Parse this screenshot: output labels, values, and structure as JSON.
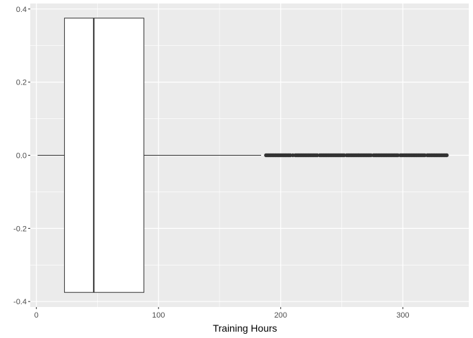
{
  "chart_data": {
    "type": "boxplot",
    "title": "",
    "xlabel": "Training Hours",
    "ylabel": "",
    "xlim": [
      -5,
      354
    ],
    "ylim": [
      -0.415,
      0.415
    ],
    "x_ticks": [
      0,
      100,
      200,
      300
    ],
    "x_tick_labels": [
      "0",
      "100",
      "200",
      "300"
    ],
    "y_ticks": [
      -0.4,
      -0.2,
      0.0,
      0.2,
      0.4
    ],
    "y_tick_labels": [
      "-0.4",
      "-0.2",
      "0.0",
      "0.2",
      "0.4"
    ],
    "grid": true,
    "box": {
      "min": 1,
      "q1": 23,
      "median": 47,
      "q3": 88,
      "whisker_high": 184,
      "y_center": 0.0,
      "half_height": 0.375
    },
    "outliers": [
      188,
      189,
      190,
      191,
      192,
      193,
      194,
      195,
      196,
      197,
      198,
      199,
      200,
      201,
      202,
      203,
      204,
      205,
      206,
      207,
      208,
      210,
      212,
      213,
      214,
      215,
      216,
      217,
      218,
      219,
      220,
      221,
      222,
      223,
      224,
      225,
      226,
      227,
      228,
      229,
      230,
      232,
      233,
      234,
      235,
      236,
      237,
      238,
      239,
      240,
      241,
      242,
      243,
      244,
      245,
      246,
      247,
      248,
      249,
      250,
      251,
      252,
      254,
      255,
      256,
      257,
      258,
      259,
      260,
      261,
      262,
      263,
      264,
      265,
      266,
      267,
      268,
      269,
      270,
      271,
      272,
      273,
      274,
      276,
      277,
      278,
      279,
      280,
      281,
      282,
      283,
      284,
      285,
      286,
      287,
      288,
      289,
      290,
      291,
      292,
      293,
      294,
      295,
      296,
      298,
      299,
      300,
      301,
      302,
      303,
      304,
      305,
      306,
      307,
      308,
      309,
      310,
      311,
      312,
      313,
      314,
      315,
      316,
      317,
      318,
      320,
      321,
      322,
      323,
      324,
      325,
      326,
      327,
      328,
      329,
      330,
      331,
      332,
      333,
      334,
      335,
      336
    ],
    "colors": {
      "panel_background": "#ebebeb",
      "grid_major": "#ffffff",
      "box_fill": "#ffffff",
      "box_line": "#333333",
      "outlier": "#333333"
    }
  }
}
